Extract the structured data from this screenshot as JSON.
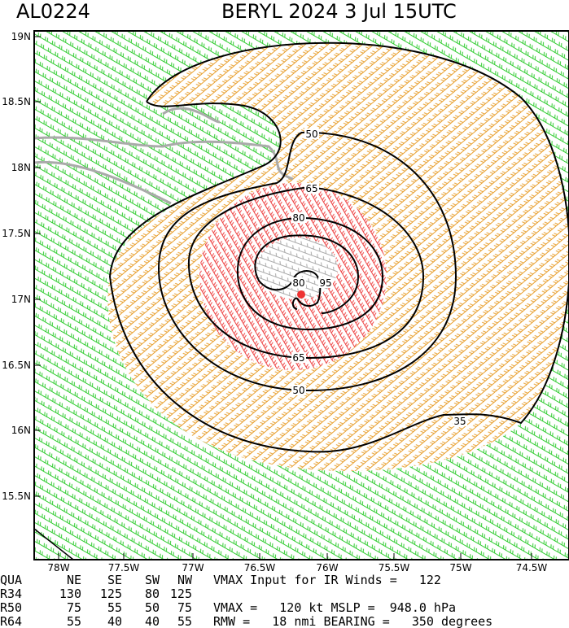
{
  "header": {
    "storm_id": "AL0224",
    "storm_time": "BERYL 2024  3 Jul 15UTC"
  },
  "map": {
    "lat_labels": [
      "19N",
      "18.5N",
      "18N",
      "17.5N",
      "17N",
      "16.5N",
      "16N",
      "15.5N"
    ],
    "lon_labels": [
      "78W",
      "77.5W",
      "77W",
      "76.5W",
      "76W",
      "75.5W",
      "75W",
      "74.5W"
    ],
    "contour_labels": [
      "35",
      "50",
      "50",
      "65",
      "65",
      "80",
      "80",
      "95"
    ]
  },
  "table": {
    "rows": [
      [
        "QUA",
        "NE",
        "SE",
        "SW",
        "NW"
      ],
      [
        "R34",
        "130",
        "125",
        "80",
        "125"
      ],
      [
        "R50",
        "75",
        "55",
        "50",
        "75"
      ],
      [
        "R64",
        "55",
        "40",
        "40",
        "55"
      ]
    ],
    "info": [
      "VMAX Input for IR Winds =   122",
      "",
      "VMAX =   120 kt MSLP =  948.0 hPa",
      "RMW =   18 nmi BEARING =   350 degrees"
    ]
  }
}
